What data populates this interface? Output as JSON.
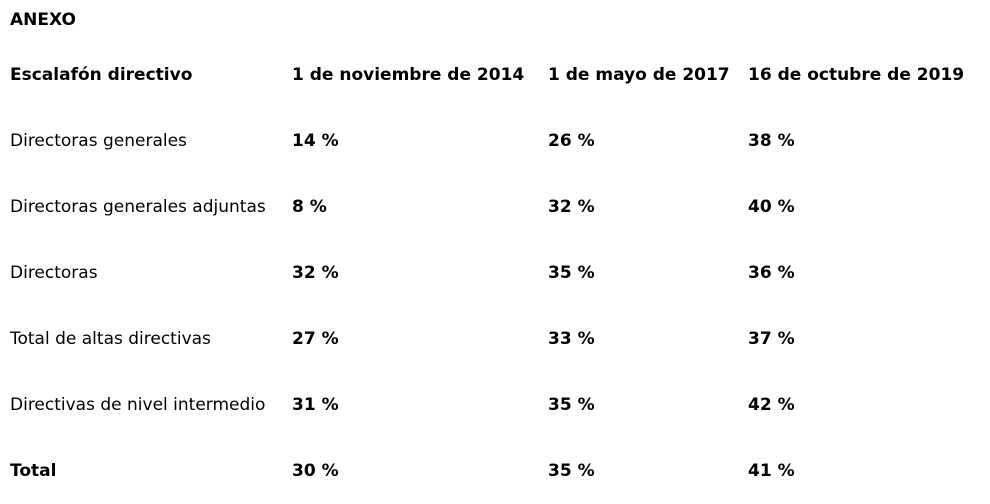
{
  "heading": "ANEXO",
  "table": {
    "headers": [
      "Escalafón directivo",
      "1 de noviembre de 2014",
      "1 de mayo de 2017",
      "16 de octubre de 2019"
    ],
    "rows": [
      {
        "label": "Directoras generales",
        "values": [
          "14 %",
          "26 %",
          "38 %"
        ]
      },
      {
        "label": "Directoras generales adjuntas",
        "values": [
          "8 %",
          "32 %",
          "40 %"
        ]
      },
      {
        "label": "Directoras",
        "values": [
          "32 %",
          "35 %",
          "36 %"
        ]
      },
      {
        "label": "Total de altas directivas",
        "values": [
          "27 %",
          "33 %",
          "37 %"
        ]
      },
      {
        "label": "Directivas de nivel intermedio",
        "values": [
          "31 %",
          "35 %",
          "42 %"
        ]
      },
      {
        "label": "Total",
        "values": [
          "30 %",
          "35 %",
          "41 %"
        ]
      }
    ]
  }
}
